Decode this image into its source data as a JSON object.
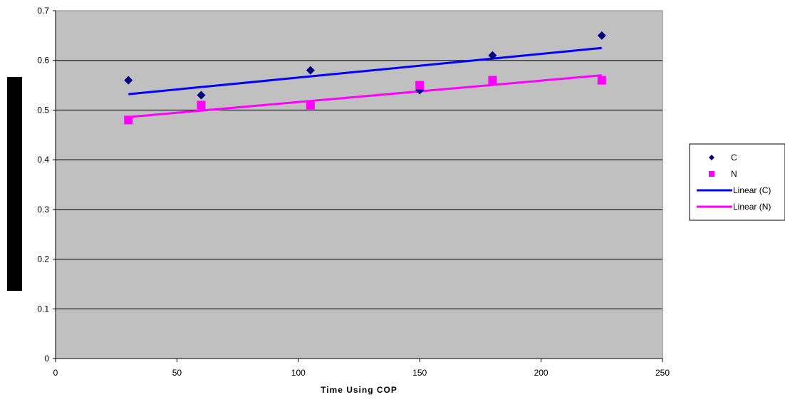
{
  "chart_data": {
    "type": "scatter",
    "title": "",
    "xlabel": "Time Using COP",
    "ylabel": "",
    "xlim": [
      0,
      250
    ],
    "ylim": [
      0,
      0.7
    ],
    "x_ticks": [
      "0",
      "50",
      "100",
      "150",
      "200",
      "250"
    ],
    "y_ticks": [
      "0",
      "0.1",
      "0.2",
      "0.3",
      "0.4",
      "0.5",
      "0.6",
      "0.7"
    ],
    "grid": "horizontal",
    "legend_position": "right",
    "plot_background": "#c0c0c0",
    "series": [
      {
        "name": "C",
        "marker": "diamond",
        "color": "#000080",
        "x": [
          30,
          60,
          105,
          150,
          180,
          225
        ],
        "y": [
          0.56,
          0.53,
          0.58,
          0.54,
          0.61,
          0.65
        ]
      },
      {
        "name": "N",
        "marker": "square",
        "color": "#ff00ff",
        "x": [
          30,
          60,
          105,
          150,
          180,
          225
        ],
        "y": [
          0.48,
          0.51,
          0.51,
          0.55,
          0.56,
          0.56
        ]
      }
    ],
    "trendlines": [
      {
        "name": "Linear (C)",
        "color": "#0000ff",
        "x": [
          30,
          225
        ],
        "y": [
          0.532,
          0.625
        ]
      },
      {
        "name": "Linear (N)",
        "color": "#ff00ff",
        "x": [
          30,
          225
        ],
        "y": [
          0.486,
          0.57
        ]
      }
    ]
  }
}
